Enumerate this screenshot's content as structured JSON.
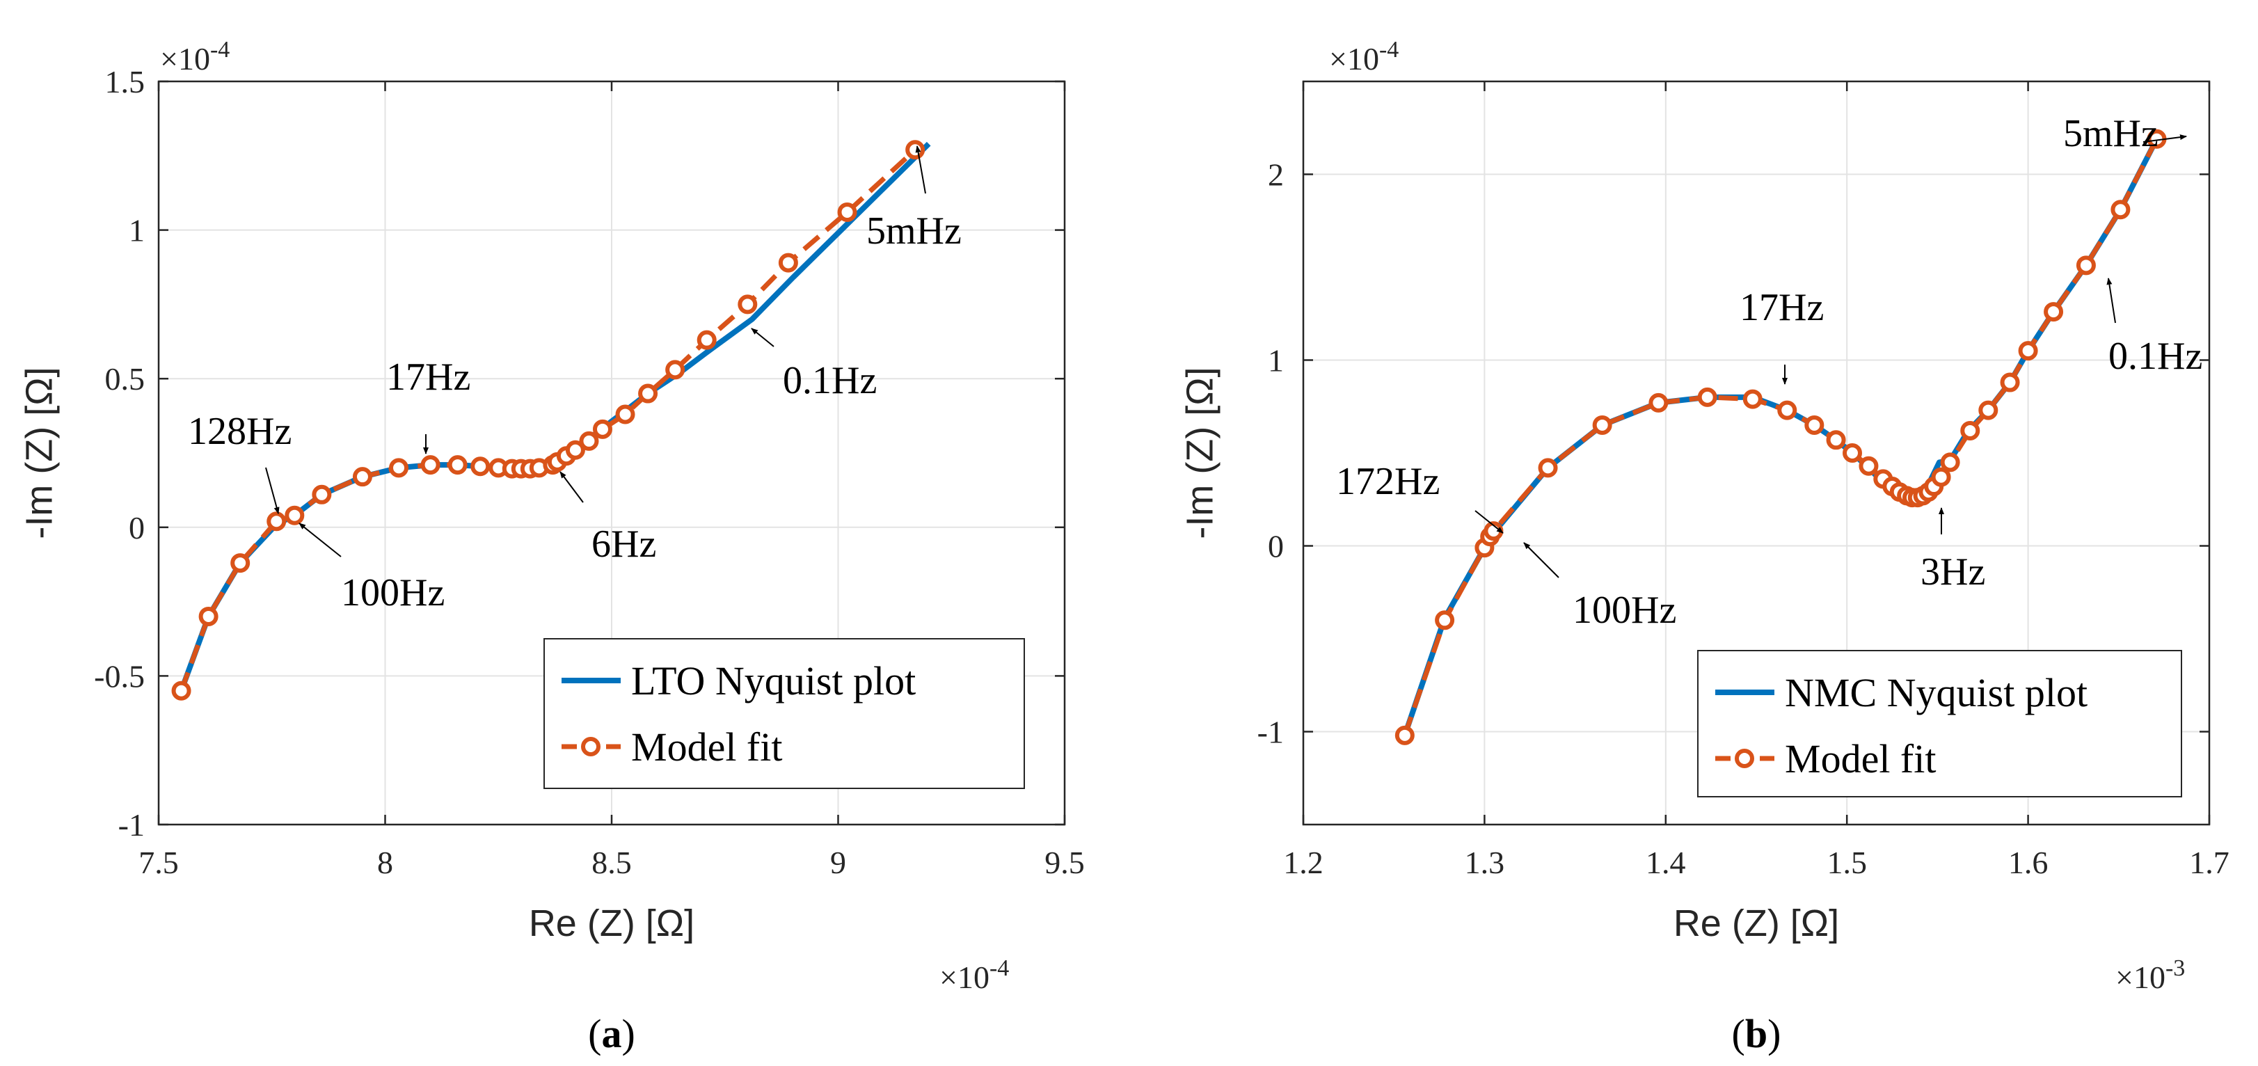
{
  "chart_data": [
    {
      "type": "line",
      "caption_letter": "a",
      "xlabel": "Re (Z) [Ω]",
      "ylabel": "-Im (Z) [Ω]",
      "x_multiplier": "×10",
      "x_exponent": "-4",
      "y_multiplier": "×10",
      "y_exponent": "-4",
      "xlim": [
        7.5,
        9.5
      ],
      "ylim": [
        -1,
        1.5
      ],
      "x_ticks": [
        "7.5",
        "8",
        "8.5",
        "9",
        "9.5"
      ],
      "y_ticks": [
        "-1",
        "-0.5",
        "0",
        "0.5",
        "1",
        "1.5"
      ],
      "grid": true,
      "legend_position": "bottom-right",
      "series": [
        {
          "name": "LTO Nyquist plot",
          "style": "solid",
          "color": "#0072BD",
          "x": [
            7.55,
            7.61,
            7.68,
            7.76,
            7.8,
            7.86,
            7.95,
            8.03,
            8.1,
            8.16,
            8.21,
            8.25,
            8.28,
            8.31,
            8.33,
            8.36,
            8.39,
            8.42,
            8.46,
            8.52,
            8.58,
            8.65,
            8.72,
            8.81,
            8.9,
            9.02,
            9.2
          ],
          "y": [
            -0.55,
            -0.3,
            -0.12,
            0.01,
            0.04,
            0.11,
            0.17,
            0.2,
            0.21,
            0.21,
            0.205,
            0.2,
            0.197,
            0.197,
            0.2,
            0.21,
            0.23,
            0.26,
            0.31,
            0.38,
            0.45,
            0.52,
            0.6,
            0.7,
            0.84,
            1.02,
            1.29
          ]
        },
        {
          "name": "Model fit",
          "style": "dashed",
          "marker": "o",
          "color": "#D95319",
          "x": [
            7.55,
            7.61,
            7.68,
            7.76,
            7.8,
            7.86,
            7.95,
            8.03,
            8.1,
            8.16,
            8.21,
            8.25,
            8.28,
            8.3,
            8.32,
            8.34,
            8.37,
            8.38,
            8.4,
            8.42,
            8.45,
            8.48,
            8.53,
            8.58,
            8.64,
            8.71,
            8.8,
            8.89,
            9.02,
            9.17
          ],
          "y": [
            -0.55,
            -0.3,
            -0.12,
            0.02,
            0.04,
            0.11,
            0.17,
            0.2,
            0.21,
            0.21,
            0.205,
            0.2,
            0.197,
            0.197,
            0.197,
            0.2,
            0.21,
            0.22,
            0.24,
            0.26,
            0.29,
            0.33,
            0.38,
            0.45,
            0.53,
            0.63,
            0.75,
            0.89,
            1.06,
            1.27
          ]
        }
      ],
      "annotations": [
        {
          "text": "128Hz",
          "x": 7.76,
          "y": 0.02
        },
        {
          "text": "17Hz",
          "x": 8.1,
          "y": 0.21
        },
        {
          "text": "100Hz",
          "x": 7.8,
          "y": 0.04
        },
        {
          "text": "6Hz",
          "x": 8.4,
          "y": 0.22
        },
        {
          "text": "0.1Hz",
          "x": 8.8,
          "y": 0.72
        },
        {
          "text": "5mHz",
          "x": 9.2,
          "y": 1.29
        }
      ]
    },
    {
      "type": "line",
      "caption_letter": "b",
      "xlabel": "Re (Z) [Ω]",
      "ylabel": "-Im (Z) [Ω]",
      "x_multiplier": "×10",
      "x_exponent": "-3",
      "y_multiplier": "×10",
      "y_exponent": "-4",
      "xlim": [
        1.2,
        1.7
      ],
      "ylim": [
        -1.5,
        2.5
      ],
      "x_ticks": [
        "1.2",
        "1.3",
        "1.4",
        "1.5",
        "1.6",
        "1.7"
      ],
      "y_ticks": [
        "-1",
        "0",
        "1",
        "2"
      ],
      "grid": true,
      "legend_position": "bottom-right",
      "series": [
        {
          "name": "NMC Nyquist plot",
          "style": "solid",
          "color": "#0072BD",
          "x": [
            1.256,
            1.278,
            1.3,
            1.305,
            1.335,
            1.365,
            1.396,
            1.423,
            1.448,
            1.467,
            1.482,
            1.494,
            1.503,
            1.512,
            1.52,
            1.527,
            1.533,
            1.537,
            1.541,
            1.546,
            1.551,
            1.557,
            1.567,
            1.578,
            1.59,
            1.6,
            1.614,
            1.632,
            1.651,
            1.671
          ],
          "y": [
            -1.02,
            -0.39,
            -0.01,
            0.07,
            0.42,
            0.65,
            0.77,
            0.8,
            0.8,
            0.73,
            0.65,
            0.57,
            0.5,
            0.42,
            0.34,
            0.29,
            0.26,
            0.26,
            0.29,
            0.35,
            0.45,
            0.46,
            0.62,
            0.73,
            0.88,
            1.05,
            1.26,
            1.51,
            1.81,
            2.19
          ]
        },
        {
          "name": "Model fit",
          "style": "dashed",
          "marker": "o",
          "color": "#D95319",
          "x": [
            1.256,
            1.278,
            1.3,
            1.303,
            1.305,
            1.335,
            1.365,
            1.396,
            1.423,
            1.448,
            1.467,
            1.482,
            1.494,
            1.503,
            1.512,
            1.52,
            1.525,
            1.529,
            1.533,
            1.536,
            1.539,
            1.542,
            1.545,
            1.548,
            1.552,
            1.557,
            1.568,
            1.578,
            1.59,
            1.6,
            1.614,
            1.632,
            1.651,
            1.671
          ],
          "y": [
            -1.02,
            -0.4,
            -0.01,
            0.05,
            0.08,
            0.42,
            0.65,
            0.77,
            0.8,
            0.79,
            0.73,
            0.65,
            0.57,
            0.5,
            0.43,
            0.36,
            0.32,
            0.29,
            0.27,
            0.26,
            0.26,
            0.27,
            0.29,
            0.32,
            0.37,
            0.45,
            0.62,
            0.73,
            0.88,
            1.05,
            1.26,
            1.51,
            1.81,
            2.19
          ]
        }
      ],
      "annotations": [
        {
          "text": "172Hz",
          "x": 1.3,
          "y": 0.03
        },
        {
          "text": "17Hz",
          "x": 1.448,
          "y": 0.8
        },
        {
          "text": "100Hz",
          "x": 1.305,
          "y": 0.05
        },
        {
          "text": "3Hz",
          "x": 1.537,
          "y": 0.26
        },
        {
          "text": "0.1Hz",
          "x": 1.632,
          "y": 1.45
        },
        {
          "text": "5mHz",
          "x": 1.668,
          "y": 2.19
        }
      ]
    }
  ]
}
